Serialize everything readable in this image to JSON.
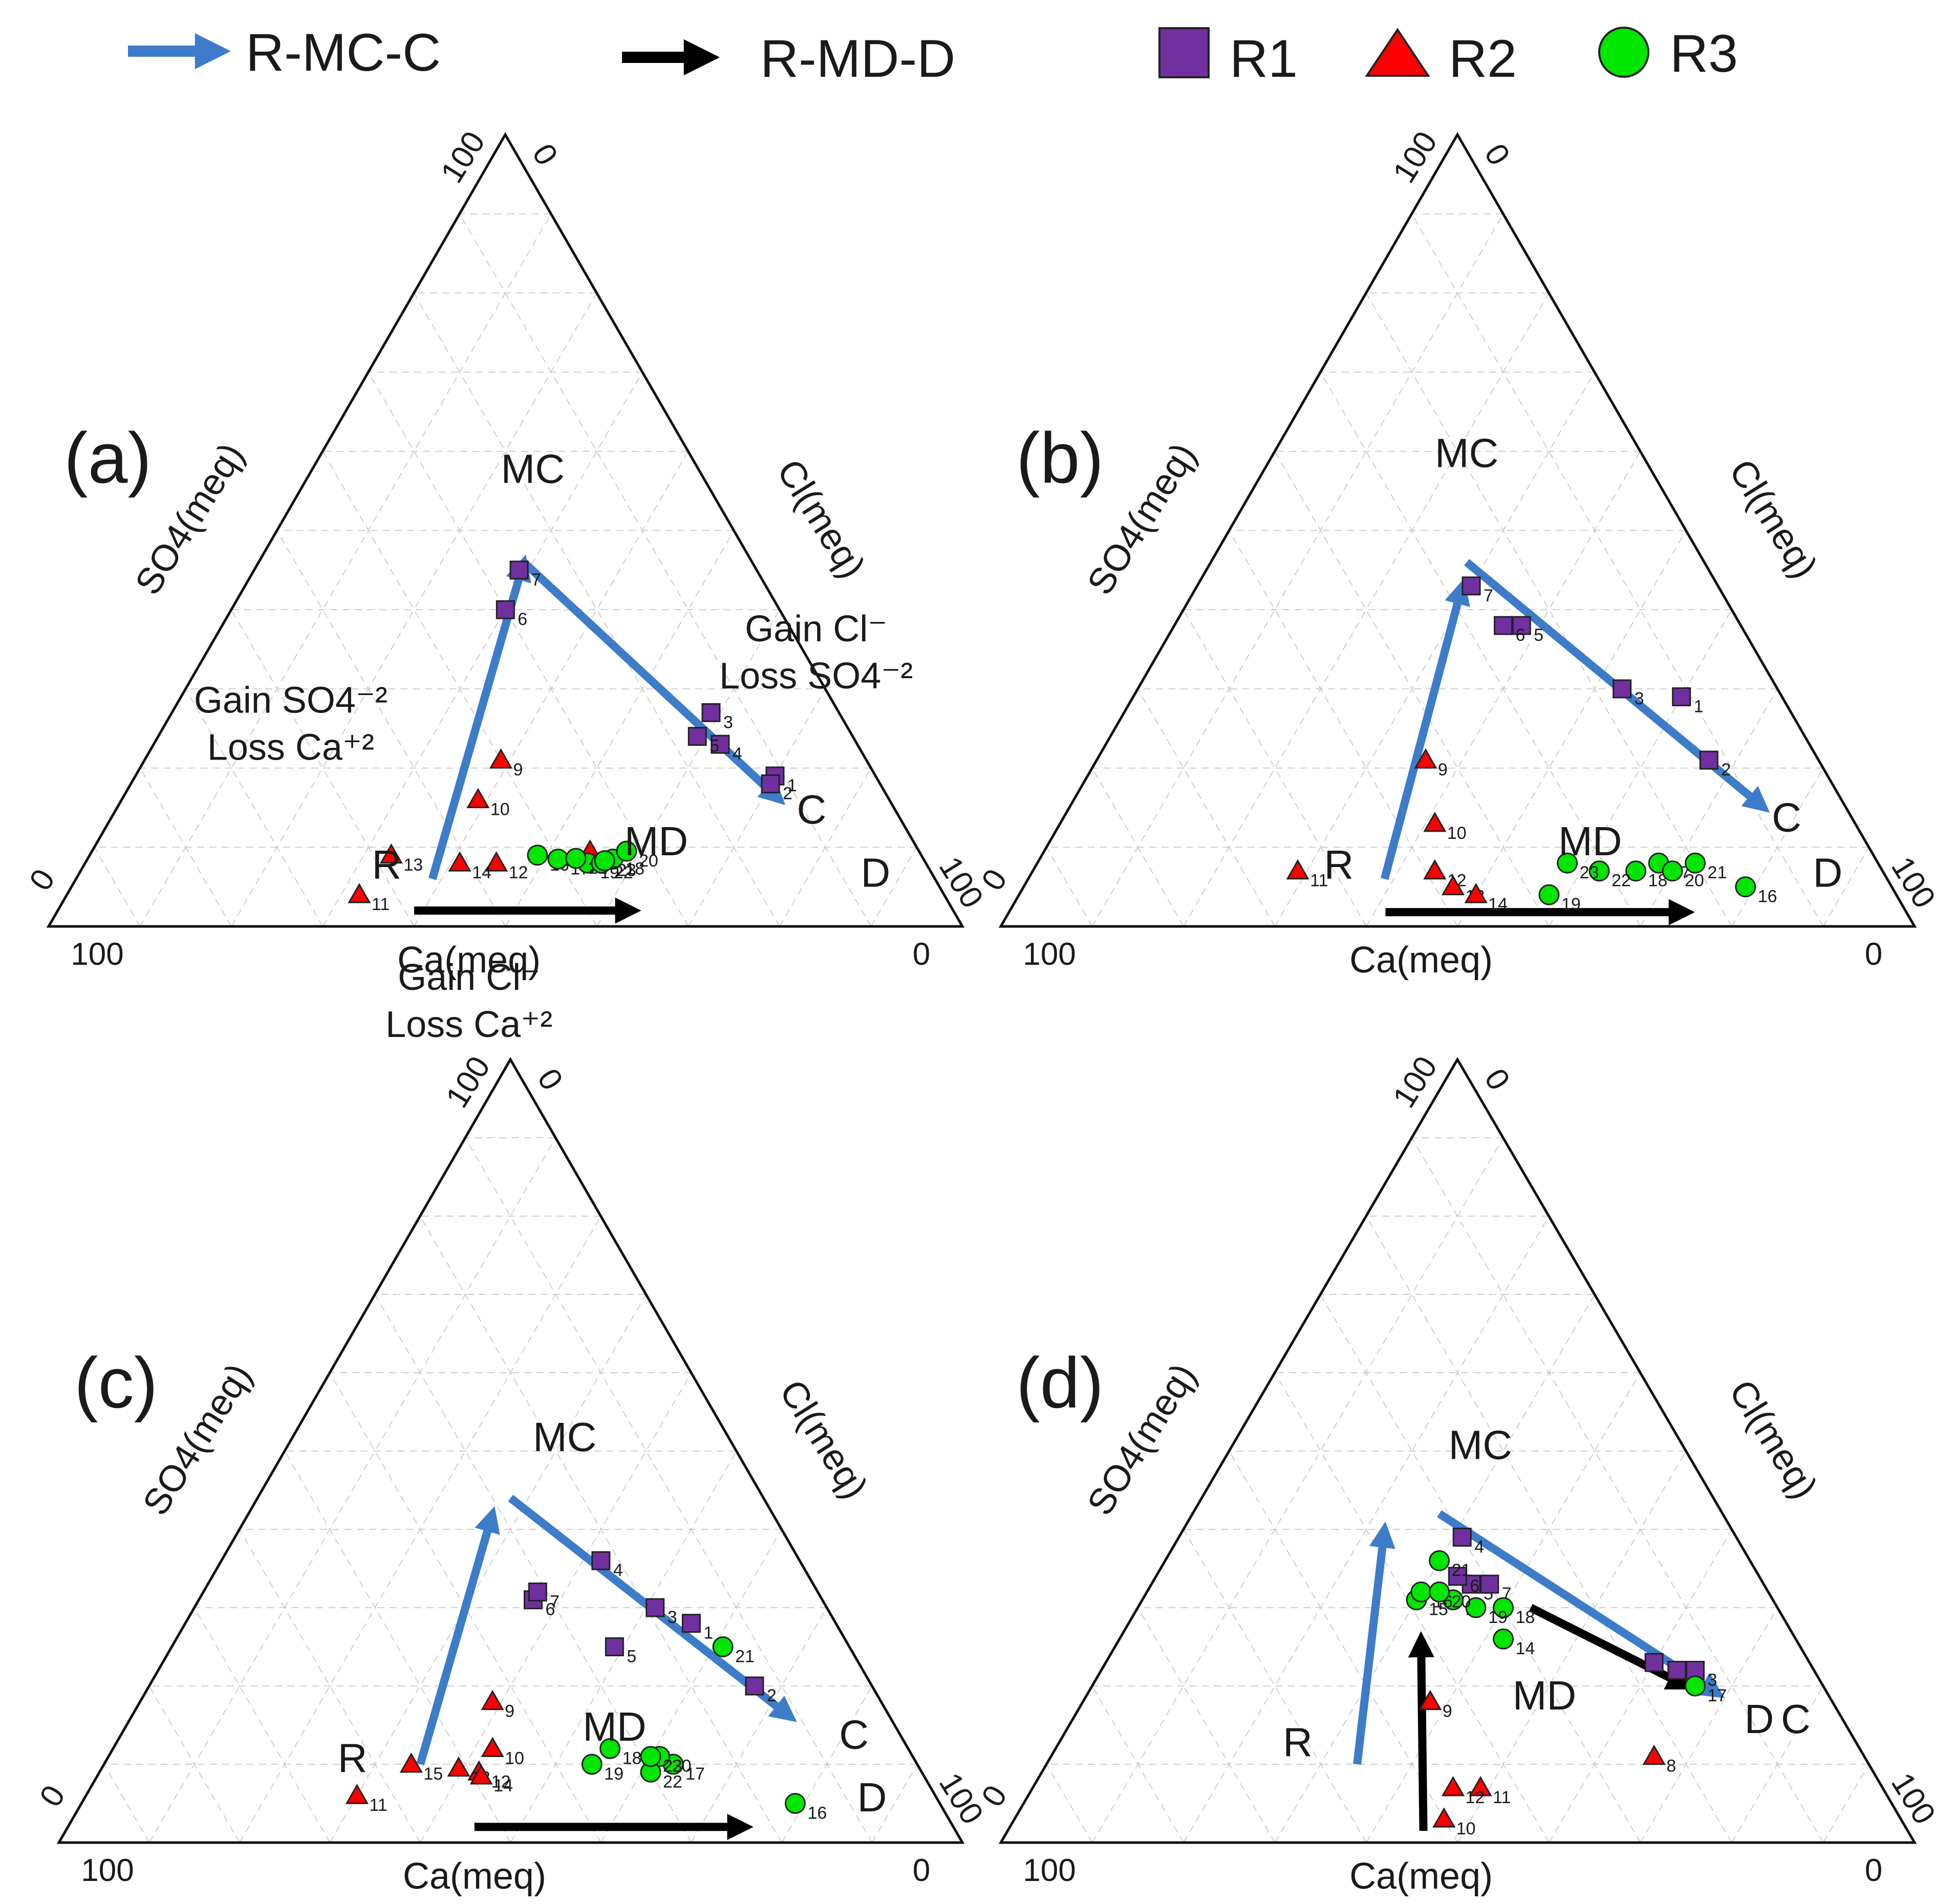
{
  "legend": {
    "arrows": [
      {
        "label": "R-MC-C",
        "color": "#3d7cc9"
      },
      {
        "label": "R-MD-D",
        "color": "#000000"
      }
    ],
    "markers": [
      {
        "label": "R1",
        "shape": "square",
        "color": "#7030a0"
      },
      {
        "label": "R2",
        "shape": "triangle",
        "color": "#ff0000"
      },
      {
        "label": "R3",
        "shape": "circle",
        "color": "#00e600"
      }
    ]
  },
  "chart_data": [
    {
      "type": "ternary-scatter",
      "panel": "(a)",
      "axes": {
        "bottom": "Ca(meq)",
        "left": "SO4(meq)",
        "right": "Cl(meq)",
        "range": [
          0,
          100
        ]
      },
      "tick_labels": {
        "bottom_left": "100",
        "bottom_right": "0",
        "left_bottom": "0",
        "left_top": "100",
        "right_top": "0",
        "right_bottom": "100"
      },
      "region_labels": {
        "R": [
          60,
          6
        ],
        "MC": [
          19,
          56
        ],
        "MD": [
          29,
          9
        ],
        "C": [
          10,
          13
        ],
        "D": [
          7,
          5
        ]
      },
      "annotations": [
        {
          "text": [
            "Gain SO4⁻²",
            "Loss Ca⁺²"
          ],
          "at": [
            60,
            27
          ]
        },
        {
          "text": [
            "Gain Cl⁻",
            "Loss SO4⁻²"
          ],
          "at": [
            -2,
            36
          ]
        },
        {
          "text": [
            "Gain Cl⁻",
            "Loss Ca⁺²"
          ],
          "at": [
            58,
            -8
          ]
        }
      ],
      "arrows": [
        {
          "series": "R-MC-C",
          "from": [
            55,
            6
          ],
          "to": [
            25,
            46
          ],
          "color": "#3d7cc9"
        },
        {
          "series": "R-MC-C",
          "from": [
            25,
            46
          ],
          "to": [
            12,
            16
          ],
          "color": "#3d7cc9"
        },
        {
          "series": "R-MD-D",
          "from": [
            59,
            2
          ],
          "to": [
            35,
            2
          ],
          "color": "#000000"
        }
      ],
      "series": [
        {
          "name": "R1",
          "points": [
            {
              "label": "1",
              "ca": 11,
              "so4": 19
            },
            {
              "label": "2",
              "ca": 12,
              "so4": 18
            },
            {
              "label": "3",
              "ca": 14,
              "so4": 27
            },
            {
              "label": "4",
              "ca": 15,
              "so4": 23
            },
            {
              "label": "5",
              "ca": 17,
              "so4": 24
            },
            {
              "label": "6",
              "ca": 30,
              "so4": 40
            },
            {
              "label": "7",
              "ca": 26,
              "so4": 45
            }
          ]
        },
        {
          "name": "R2",
          "points": [
            {
              "label": "9",
              "ca": 40,
              "so4": 21
            },
            {
              "label": "10",
              "ca": 45,
              "so4": 16
            },
            {
              "label": "11",
              "ca": 64,
              "so4": 4
            },
            {
              "label": "12",
              "ca": 47,
              "so4": 8
            },
            {
              "label": "13",
              "ca": 58,
              "so4": 9
            },
            {
              "label": "14",
              "ca": 51,
              "so4": 8
            },
            {
              "label": "15",
              "ca": 36,
              "so4": 9.5
            }
          ]
        },
        {
          "name": "R3",
          "points": [
            {
              "label": "16",
              "ca": 42,
              "so4": 9
            },
            {
              "label": "17",
              "ca": 40,
              "so4": 8.5
            },
            {
              "label": "18",
              "ca": 34,
              "so4": 8.5
            },
            {
              "label": "19",
              "ca": 37,
              "so4": 8
            },
            {
              "label": "20",
              "ca": 32,
              "so4": 9.5
            },
            {
              "label": "21",
              "ca": 38,
              "so4": 8.6
            },
            {
              "label": "22",
              "ca": 35.5,
              "so4": 8
            },
            {
              "label": "23",
              "ca": 35,
              "so4": 8.3
            }
          ]
        }
      ]
    },
    {
      "type": "ternary-scatter",
      "panel": "(b)",
      "axes": {
        "bottom": "Ca(meq)",
        "left": "SO4(meq)",
        "right": "Cl(meq)",
        "range": [
          0,
          100
        ]
      },
      "tick_labels": {
        "bottom_left": "100",
        "bottom_right": "0",
        "left_bottom": "0",
        "left_top": "100",
        "right_top": "0",
        "right_bottom": "100"
      },
      "region_labels": {
        "R": [
          60,
          6
        ],
        "MC": [
          20,
          58
        ],
        "MD": [
          31,
          9
        ],
        "C": [
          8,
          12
        ],
        "D": [
          7,
          5
        ]
      },
      "annotations": [],
      "arrows": [
        {
          "series": "R-MC-C",
          "from": [
            55,
            6
          ],
          "to": [
            28,
            43
          ],
          "color": "#3d7cc9"
        },
        {
          "series": "R-MC-C",
          "from": [
            26,
            46
          ],
          "to": [
            9,
            15
          ],
          "color": "#3d7cc9"
        },
        {
          "series": "R-MD-D",
          "from": [
            57,
            1.8
          ],
          "to": [
            24,
            1.8
          ],
          "color": "#000000"
        }
      ],
      "series": [
        {
          "name": "R1",
          "points": [
            {
              "label": "1",
              "ca": 11,
              "so4": 29
            },
            {
              "label": "2",
              "ca": 12,
              "so4": 21
            },
            {
              "label": "3",
              "ca": 17,
              "so4": 30
            },
            {
              "label": "5",
              "ca": 24,
              "so4": 38
            },
            {
              "label": "6",
              "ca": 26,
              "so4": 38
            },
            {
              "label": "7",
              "ca": 27,
              "so4": 43
            }
          ]
        },
        {
          "name": "R2",
          "points": [
            {
              "label": "9",
              "ca": 43,
              "so4": 21
            },
            {
              "label": "10",
              "ca": 46,
              "so4": 13
            },
            {
              "label": "11",
              "ca": 64,
              "so4": 7
            },
            {
              "label": "12",
              "ca": 49,
              "so4": 7
            },
            {
              "label": "13",
              "ca": 48,
              "so4": 5
            },
            {
              "label": "14",
              "ca": 46,
              "so4": 4
            }
          ]
        },
        {
          "name": "R3",
          "points": [
            {
              "label": "16",
              "ca": 16,
              "so4": 5
            },
            {
              "label": "17",
              "ca": 24,
              "so4": 8
            },
            {
              "label": "18",
              "ca": 27,
              "so4": 7
            },
            {
              "label": "19",
              "ca": 38,
              "so4": 4
            },
            {
              "label": "20",
              "ca": 23,
              "so4": 7
            },
            {
              "label": "21",
              "ca": 20,
              "so4": 8
            },
            {
              "label": "22",
              "ca": 31,
              "so4": 7
            },
            {
              "label": "23",
              "ca": 34,
              "so4": 8
            }
          ]
        }
      ]
    },
    {
      "type": "ternary-scatter",
      "panel": "(c)",
      "axes": {
        "bottom": "Ca(meq)",
        "left": "SO4(meq)",
        "right": "Cl(meq)",
        "range": [
          0,
          100
        ]
      },
      "tick_labels": {
        "bottom_left": "100",
        "bottom_right": "0",
        "left_bottom": "0",
        "left_top": "100",
        "right_top": "0",
        "right_bottom": "100"
      },
      "region_labels": {
        "R": [
          63,
          9
        ],
        "MC": [
          19,
          50
        ],
        "MD": [
          32,
          13
        ],
        "C": [
          6,
          12
        ],
        "D": [
          8,
          4
        ]
      },
      "annotations": [],
      "arrows": [
        {
          "series": "R-MC-C",
          "from": [
            55,
            10
          ],
          "to": [
            31,
            42
          ],
          "color": "#3d7cc9"
        },
        {
          "series": "R-MC-C",
          "from": [
            28,
            44
          ],
          "to": [
            11,
            16
          ],
          "color": "#3d7cc9"
        },
        {
          "series": "R-MD-D",
          "from": [
            53,
            2
          ],
          "to": [
            23,
            2
          ],
          "color": "#000000"
        }
      ],
      "series": [
        {
          "name": "R1",
          "points": [
            {
              "label": "1",
              "ca": 16,
              "so4": 28
            },
            {
              "label": "2",
              "ca": 13,
              "so4": 20
            },
            {
              "label": "3",
              "ca": 19,
              "so4": 30
            },
            {
              "label": "4",
              "ca": 22,
              "so4": 36
            },
            {
              "label": "5",
              "ca": 26,
              "so4": 25
            },
            {
              "label": "6",
              "ca": 32,
              "so4": 31
            },
            {
              "label": "7",
              "ca": 31,
              "so4": 32
            }
          ]
        },
        {
          "name": "R2",
          "points": [
            {
              "label": "9",
              "ca": 43,
              "so4": 18
            },
            {
              "label": "10",
              "ca": 46,
              "so4": 12
            },
            {
              "label": "11",
              "ca": 64,
              "so4": 6
            },
            {
              "label": "12",
              "ca": 49,
              "so4": 9
            },
            {
              "label": "13",
              "ca": 51,
              "so4": 9.5
            },
            {
              "label": "14",
              "ca": 49,
              "so4": 8.5
            },
            {
              "label": "15",
              "ca": 56,
              "so4": 10
            }
          ]
        },
        {
          "name": "R3",
          "points": [
            {
              "label": "16",
              "ca": 16,
              "so4": 5
            },
            {
              "label": "17",
              "ca": 27,
              "so4": 10
            },
            {
              "label": "18",
              "ca": 33,
              "so4": 12
            },
            {
              "label": "19",
              "ca": 36,
              "so4": 10
            },
            {
              "label": "20",
              "ca": 28,
              "so4": 11
            },
            {
              "label": "21",
              "ca": 14,
              "so4": 25
            },
            {
              "label": "22",
              "ca": 30,
              "so4": 9
            },
            {
              "label": "23",
              "ca": 29,
              "so4": 11
            }
          ]
        }
      ]
    },
    {
      "type": "ternary-scatter",
      "panel": "(d)",
      "axes": {
        "bottom": "Ca(meq)",
        "left": "SO4(meq)",
        "right": "Cl(meq)",
        "range": [
          0,
          100
        ]
      },
      "tick_labels": {
        "bottom_left": "100",
        "bottom_right": "0",
        "left_bottom": "0",
        "left_top": "100",
        "right_top": "0",
        "right_bottom": "100"
      },
      "region_labels": {
        "R": [
          62,
          11
        ],
        "MC": [
          23,
          49
        ],
        "MD": [
          32,
          17
        ],
        "C": [
          6,
          14
        ],
        "D": [
          10,
          14
        ]
      },
      "annotations": [],
      "arrows": [
        {
          "series": "R-MC-C",
          "from": [
            56,
            10
          ],
          "to": [
            38,
            40
          ],
          "color": "#3d7cc9"
        },
        {
          "series": "R-MC-C",
          "from": [
            31,
            42
          ],
          "to": [
            12,
            19
          ],
          "color": "#3d7cc9"
        },
        {
          "series": "R-MD-D",
          "from": [
            53,
            1.5
          ],
          "to": [
            41,
            26
          ],
          "color": "#000000"
        },
        {
          "series": "R-MD-D",
          "from": [
            27,
            30
          ],
          "to": [
            15,
            20
          ],
          "color": "#000000"
        }
      ],
      "series": [
        {
          "name": "R1",
          "points": [
            {
              "label": "1",
              "ca": 17,
              "so4": 23
            },
            {
              "label": "2",
              "ca": 15,
              "so4": 22
            },
            {
              "label": "3",
              "ca": 13,
              "so4": 22
            },
            {
              "label": "4",
              "ca": 30,
              "so4": 39
            },
            {
              "label": "5",
              "ca": 32,
              "so4": 33
            },
            {
              "label": "6",
              "ca": 33,
              "so4": 34
            },
            {
              "label": "7",
              "ca": 30,
              "so4": 33
            }
          ]
        },
        {
          "name": "R2",
          "points": [
            {
              "label": "8",
              "ca": 23,
              "so4": 11
            },
            {
              "label": "9",
              "ca": 44,
              "so4": 18
            },
            {
              "label": "10",
              "ca": 50,
              "so4": 3
            },
            {
              "label": "11",
              "ca": 44,
              "so4": 7
            },
            {
              "label": "12",
              "ca": 47,
              "so4": 7
            }
          ]
        },
        {
          "name": "R3",
          "points": [
            {
              "label": "13",
              "ca": 35,
              "so4": 31
            },
            {
              "label": "14",
              "ca": 32,
              "so4": 26
            },
            {
              "label": "15",
              "ca": 39,
              "so4": 31
            },
            {
              "label": "16",
              "ca": 38,
              "so4": 32
            },
            {
              "label": "17",
              "ca": 14,
              "so4": 20
            },
            {
              "label": "18",
              "ca": 30,
              "so4": 30
            },
            {
              "label": "19",
              "ca": 33,
              "so4": 30
            },
            {
              "label": "20",
              "ca": 36,
              "so4": 32
            },
            {
              "label": "21",
              "ca": 34,
              "so4": 36
            }
          ]
        }
      ]
    }
  ]
}
